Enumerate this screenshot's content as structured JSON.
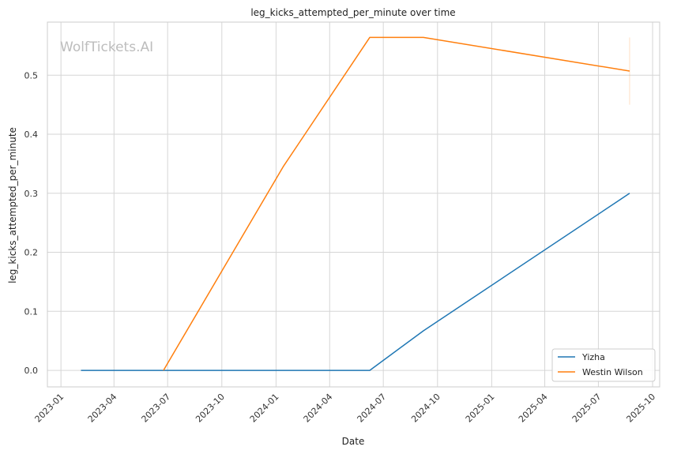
{
  "chart_data": {
    "type": "line",
    "title": "leg_kicks_attempted_per_minute over time",
    "xlabel": "Date",
    "ylabel": "leg_kicks_attempted_per_minute",
    "watermark": "WolfTickets.AI",
    "x_type": "date",
    "xlim": [
      "2022-12-09",
      "2025-10-13"
    ],
    "ylim": [
      -0.028,
      0.59
    ],
    "x_ticks": [
      {
        "date": "2023-01-01",
        "label": "2023-01"
      },
      {
        "date": "2023-04-01",
        "label": "2023-04"
      },
      {
        "date": "2023-07-01",
        "label": "2023-07"
      },
      {
        "date": "2023-10-01",
        "label": "2023-10"
      },
      {
        "date": "2024-01-01",
        "label": "2024-01"
      },
      {
        "date": "2024-04-01",
        "label": "2024-04"
      },
      {
        "date": "2024-07-01",
        "label": "2024-07"
      },
      {
        "date": "2024-10-01",
        "label": "2024-10"
      },
      {
        "date": "2025-01-01",
        "label": "2025-01"
      },
      {
        "date": "2025-04-01",
        "label": "2025-04"
      },
      {
        "date": "2025-07-01",
        "label": "2025-07"
      },
      {
        "date": "2025-10-01",
        "label": "2025-10"
      }
    ],
    "y_ticks": [
      {
        "value": 0.0,
        "label": "0.0"
      },
      {
        "value": 0.1,
        "label": "0.1"
      },
      {
        "value": 0.2,
        "label": "0.2"
      },
      {
        "value": 0.3,
        "label": "0.3"
      },
      {
        "value": 0.4,
        "label": "0.4"
      },
      {
        "value": 0.5,
        "label": "0.5"
      }
    ],
    "grid": true,
    "legend_position": "bottom-right",
    "series": [
      {
        "name": "Yizha",
        "color": "#1f77b4",
        "points": [
          {
            "x": "2023-02-04",
            "y": 0.0
          },
          {
            "x": "2024-06-08",
            "y": 0.0
          },
          {
            "x": "2024-09-07",
            "y": 0.067
          },
          {
            "x": "2025-08-23",
            "y": 0.3
          }
        ]
      },
      {
        "name": "Westin Wilson",
        "color": "#ff7f0e",
        "points": [
          {
            "x": "2023-06-24",
            "y": 0.0
          },
          {
            "x": "2024-01-13",
            "y": 0.345
          },
          {
            "x": "2024-06-08",
            "y": 0.564
          },
          {
            "x": "2024-09-07",
            "y": 0.564
          },
          {
            "x": "2025-08-23",
            "y": 0.507
          }
        ],
        "error_band": {
          "x": "2025-08-23",
          "low": 0.45,
          "high": 0.564
        }
      }
    ]
  }
}
